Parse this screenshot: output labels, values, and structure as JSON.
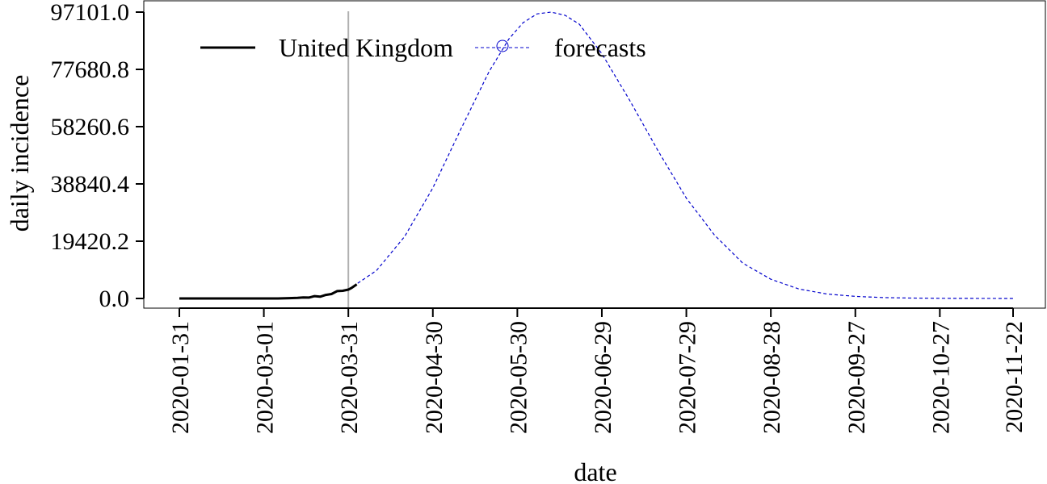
{
  "chart_data": {
    "type": "line",
    "xlabel": "date",
    "ylabel": "daily incidence",
    "ylim": [
      0,
      97101.0
    ],
    "yticks": [
      "0.0",
      "19420.2",
      "38840.4",
      "58260.6",
      "77680.8",
      "97101.0"
    ],
    "ytick_values": [
      0,
      19420.2,
      38840.4,
      58260.6,
      77680.8,
      97101.0
    ],
    "xlim": [
      "2020-01-31",
      "2020-11-22"
    ],
    "xticks": [
      "2020-01-31",
      "2020-03-01",
      "2020-03-31",
      "2020-04-30",
      "2020-05-30",
      "2020-06-29",
      "2020-07-29",
      "2020-08-28",
      "2020-09-27",
      "2020-10-27",
      "2020-11-22"
    ],
    "forecast_start_marker": "2020-03-31",
    "legend": {
      "placement": "top-left",
      "entries": [
        {
          "label": "United Kingdom",
          "style": "solid",
          "color": "#000000"
        },
        {
          "label": "forecasts",
          "style": "dashed-circle",
          "color": "#0000cc"
        }
      ]
    },
    "series": [
      {
        "name": "United Kingdom",
        "color": "#000000",
        "style": "solid",
        "x": [
          "2020-01-31",
          "2020-02-10",
          "2020-02-20",
          "2020-03-01",
          "2020-03-06",
          "2020-03-10",
          "2020-03-13",
          "2020-03-15",
          "2020-03-17",
          "2020-03-19",
          "2020-03-21",
          "2020-03-23",
          "2020-03-25",
          "2020-03-27",
          "2020-03-29",
          "2020-03-31",
          "2020-04-01",
          "2020-04-03"
        ],
        "y": [
          0,
          0,
          0,
          0,
          0,
          100,
          200,
          350,
          300,
          800,
          600,
          1200,
          1500,
          2500,
          2600,
          3000,
          3500,
          4800
        ]
      },
      {
        "name": "forecasts",
        "color": "#0000cc",
        "style": "dashed",
        "x": [
          "2020-03-31",
          "2020-04-10",
          "2020-04-20",
          "2020-04-30",
          "2020-05-10",
          "2020-05-20",
          "2020-05-27",
          "2020-06-01",
          "2020-06-06",
          "2020-06-11",
          "2020-06-16",
          "2020-06-21",
          "2020-06-29",
          "2020-07-09",
          "2020-07-19",
          "2020-07-29",
          "2020-08-08",
          "2020-08-18",
          "2020-08-28",
          "2020-09-07",
          "2020-09-17",
          "2020-09-27",
          "2020-10-07",
          "2020-10-17",
          "2020-10-27",
          "2020-11-06",
          "2020-11-22"
        ],
        "y": [
          3000,
          9500,
          21000,
          37500,
          57500,
          77000,
          88000,
          93500,
          96500,
          97101,
          96000,
          93000,
          83000,
          67000,
          50000,
          34000,
          21500,
          12000,
          6500,
          3200,
          1500,
          700,
          300,
          150,
          60,
          25,
          5
        ]
      }
    ]
  }
}
